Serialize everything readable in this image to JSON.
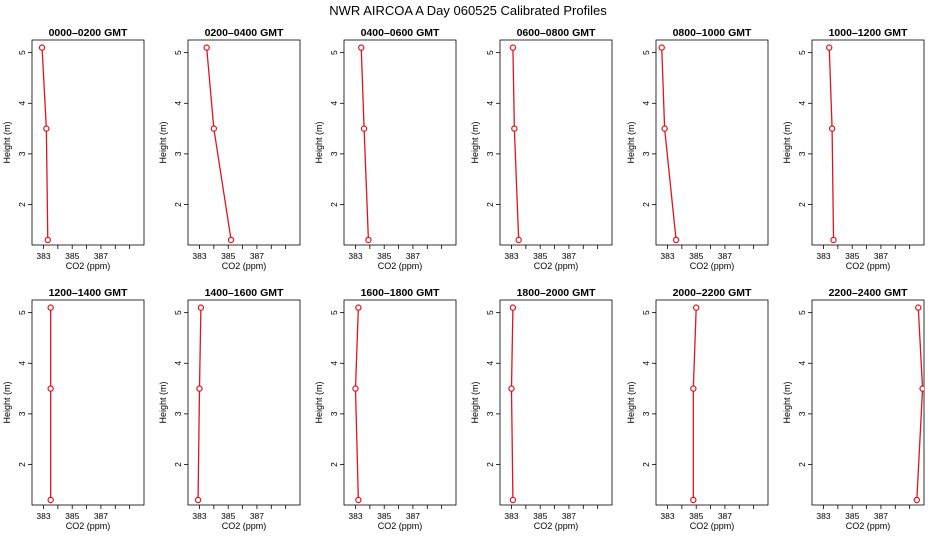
{
  "title": "NWR AIRCOA A  Day 060525  Calibrated Profiles",
  "chart_data": [
    {
      "type": "line",
      "title": "0000–0200 GMT",
      "xlabel": "CO2 (ppm)",
      "ylabel": "Height (m)",
      "xlim": [
        382.2,
        390
      ],
      "ylim": [
        1.2,
        5.25
      ],
      "x": [
        383.3,
        383.2,
        382.9
      ],
      "y": [
        1.3,
        3.5,
        5.1
      ],
      "xticks": [
        "383",
        "385",
        "387"
      ],
      "yticks": [
        "2",
        "3",
        "4",
        "5"
      ]
    },
    {
      "type": "line",
      "title": "0200–0400 GMT",
      "xlabel": "CO2 (ppm)",
      "ylabel": "Height (m)",
      "xlim": [
        382.2,
        390
      ],
      "ylim": [
        1.2,
        5.25
      ],
      "x": [
        385.2,
        384.0,
        383.5
      ],
      "y": [
        1.3,
        3.5,
        5.1
      ],
      "xticks": [
        "383",
        "385",
        "387"
      ],
      "yticks": [
        "2",
        "3",
        "4",
        "5"
      ]
    },
    {
      "type": "line",
      "title": "0400–0600 GMT",
      "xlabel": "CO2 (ppm)",
      "ylabel": "Height (m)",
      "xlim": [
        382.2,
        390
      ],
      "ylim": [
        1.2,
        5.25
      ],
      "x": [
        383.9,
        383.6,
        383.4
      ],
      "y": [
        1.3,
        3.5,
        5.1
      ],
      "xticks": [
        "383",
        "385",
        "387"
      ],
      "yticks": [
        "2",
        "3",
        "4",
        "5"
      ]
    },
    {
      "type": "line",
      "title": "0600–0800 GMT",
      "xlabel": "CO2 (ppm)",
      "ylabel": "Height (m)",
      "xlim": [
        382.2,
        390
      ],
      "ylim": [
        1.2,
        5.25
      ],
      "x": [
        383.5,
        383.2,
        383.1
      ],
      "y": [
        1.3,
        3.5,
        5.1
      ],
      "xticks": [
        "383",
        "385",
        "387"
      ],
      "yticks": [
        "2",
        "3",
        "4",
        "5"
      ]
    },
    {
      "type": "line",
      "title": "0800–1000 GMT",
      "xlabel": "CO2 (ppm)",
      "ylabel": "Height (m)",
      "xlim": [
        382.2,
        390
      ],
      "ylim": [
        1.2,
        5.25
      ],
      "x": [
        383.6,
        382.8,
        382.6
      ],
      "y": [
        1.3,
        3.5,
        5.1
      ],
      "xticks": [
        "383",
        "385",
        "387"
      ],
      "yticks": [
        "2",
        "3",
        "4",
        "5"
      ]
    },
    {
      "type": "line",
      "title": "1000–1200 GMT",
      "xlabel": "CO2 (ppm)",
      "ylabel": "Height (m)",
      "xlim": [
        382.2,
        390
      ],
      "ylim": [
        1.2,
        5.25
      ],
      "x": [
        383.7,
        383.6,
        383.4
      ],
      "y": [
        1.3,
        3.5,
        5.1
      ],
      "xticks": [
        "383",
        "385",
        "387"
      ],
      "yticks": [
        "2",
        "3",
        "4",
        "5"
      ]
    },
    {
      "type": "line",
      "title": "1200–1400 GMT",
      "xlabel": "CO2 (ppm)",
      "ylabel": "Height (m)",
      "xlim": [
        382.2,
        390
      ],
      "ylim": [
        1.2,
        5.25
      ],
      "x": [
        383.5,
        383.5,
        383.5
      ],
      "y": [
        1.3,
        3.5,
        5.1
      ],
      "xticks": [
        "383",
        "385",
        "387"
      ],
      "yticks": [
        "2",
        "3",
        "4",
        "5"
      ]
    },
    {
      "type": "line",
      "title": "1400–1600 GMT",
      "xlabel": "CO2 (ppm)",
      "ylabel": "Height (m)",
      "xlim": [
        382.2,
        390
      ],
      "ylim": [
        1.2,
        5.25
      ],
      "x": [
        382.9,
        383.0,
        383.1
      ],
      "y": [
        1.3,
        3.5,
        5.1
      ],
      "xticks": [
        "383",
        "385",
        "387"
      ],
      "yticks": [
        "2",
        "3",
        "4",
        "5"
      ]
    },
    {
      "type": "line",
      "title": "1600–1800 GMT",
      "xlabel": "CO2 (ppm)",
      "ylabel": "Height (m)",
      "xlim": [
        382.2,
        390
      ],
      "ylim": [
        1.2,
        5.25
      ],
      "x": [
        383.2,
        383.0,
        383.2
      ],
      "y": [
        1.3,
        3.5,
        5.1
      ],
      "xticks": [
        "383",
        "385",
        "387"
      ],
      "yticks": [
        "2",
        "3",
        "4",
        "5"
      ]
    },
    {
      "type": "line",
      "title": "1800–2000 GMT",
      "xlabel": "CO2 (ppm)",
      "ylabel": "Height (m)",
      "xlim": [
        382.2,
        390
      ],
      "ylim": [
        1.2,
        5.25
      ],
      "x": [
        383.1,
        383.0,
        383.1
      ],
      "y": [
        1.3,
        3.5,
        5.1
      ],
      "xticks": [
        "383",
        "385",
        "387"
      ],
      "yticks": [
        "2",
        "3",
        "4",
        "5"
      ]
    },
    {
      "type": "line",
      "title": "2000–2200 GMT",
      "xlabel": "CO2 (ppm)",
      "ylabel": "Height (m)",
      "xlim": [
        382.2,
        390
      ],
      "ylim": [
        1.2,
        5.25
      ],
      "x": [
        384.8,
        384.8,
        385.0
      ],
      "y": [
        1.3,
        3.5,
        5.1
      ],
      "xticks": [
        "383",
        "385",
        "387"
      ],
      "yticks": [
        "2",
        "3",
        "4",
        "5"
      ]
    },
    {
      "type": "line",
      "title": "2200–2400 GMT",
      "xlabel": "CO2 (ppm)",
      "ylabel": "Height (m)",
      "xlim": [
        382.2,
        390
      ],
      "ylim": [
        1.2,
        5.25
      ],
      "x": [
        389.5,
        389.9,
        389.6
      ],
      "y": [
        1.3,
        3.5,
        5.1
      ],
      "xticks": [
        "383",
        "385",
        "387"
      ],
      "yticks": [
        "2",
        "3",
        "4",
        "5"
      ]
    }
  ]
}
